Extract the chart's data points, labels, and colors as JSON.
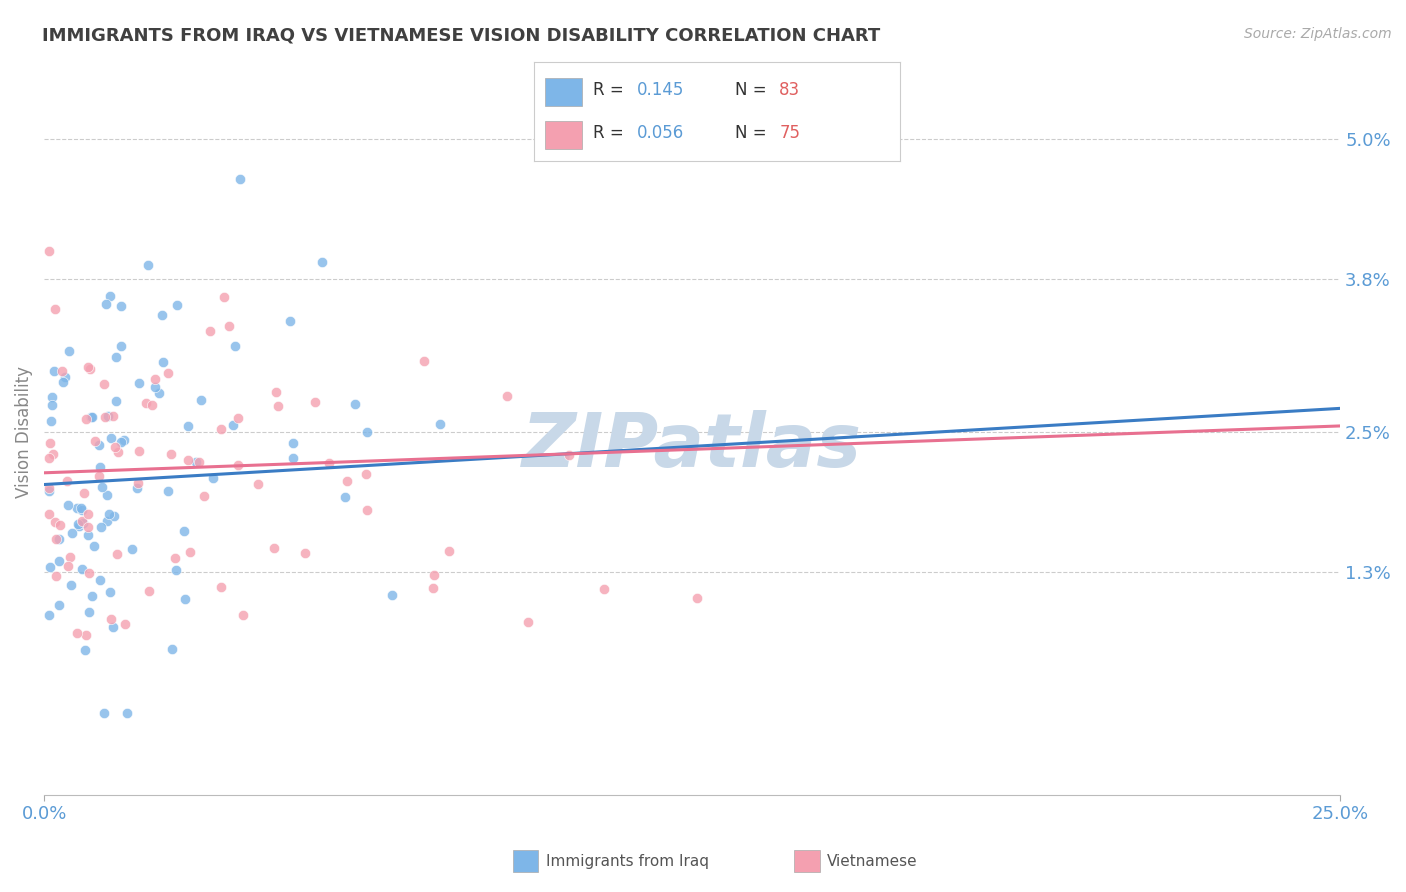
{
  "title": "IMMIGRANTS FROM IRAQ VS VIETNAMESE VISION DISABILITY CORRELATION CHART",
  "source": "Source: ZipAtlas.com",
  "ylabel": "Vision Disability",
  "xlim": [
    0.0,
    0.25
  ],
  "ylim": [
    -0.006,
    0.056
  ],
  "yticks": [
    0.013,
    0.025,
    0.038,
    0.05
  ],
  "ytick_labels": [
    "1.3%",
    "2.5%",
    "3.8%",
    "5.0%"
  ],
  "xticks": [
    0.0,
    0.25
  ],
  "xtick_labels": [
    "0.0%",
    "25.0%"
  ],
  "iraq_R": 0.145,
  "iraq_N": 83,
  "viet_R": 0.056,
  "viet_N": 75,
  "iraq_color": "#7EB6E8",
  "viet_color": "#F4A0B0",
  "iraq_line_color": "#3A7CC4",
  "viet_line_color": "#E87090",
  "background_color": "#FFFFFF",
  "watermark": "ZIPatlas",
  "watermark_color": "#C8D8E8",
  "title_color": "#404040",
  "axis_label_color": "#5B9BD5",
  "legend_R_color": "#5B9BD5",
  "legend_N_color": "#E06060",
  "grid_color": "#CCCCCC",
  "iraq_line_x0": 0.0,
  "iraq_line_y0": 0.0205,
  "iraq_line_x1": 0.25,
  "iraq_line_y1": 0.027,
  "viet_line_x0": 0.0,
  "viet_line_y0": 0.0215,
  "viet_line_x1": 0.25,
  "viet_line_y1": 0.0255
}
